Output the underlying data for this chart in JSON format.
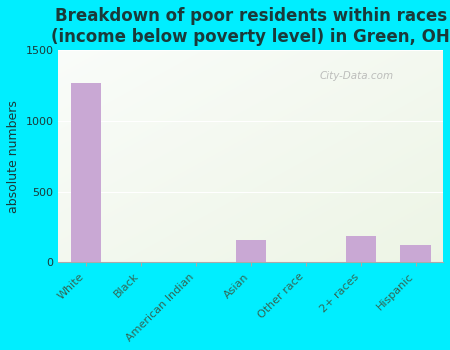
{
  "title": "Breakdown of poor residents within races\n(income below poverty level) in Green, OH",
  "categories": [
    "White",
    "Black",
    "American Indian",
    "Asian",
    "Other race",
    "2+ races",
    "Hispanic"
  ],
  "values": [
    1270,
    0,
    0,
    155,
    0,
    185,
    120
  ],
  "bar_color": "#c9a8d4",
  "ylabel": "absolute numbers",
  "ylim": [
    0,
    1500
  ],
  "yticks": [
    0,
    500,
    1000,
    1500
  ],
  "bg_outer": "#00eeff",
  "bg_plot_topleft": "#f0f8ec",
  "bg_plot_topright": "#d6ead8",
  "bg_plot_bottom": "#f8fdf6",
  "title_color": "#1a3a3a",
  "label_color": "#336655",
  "title_fontsize": 12,
  "ylabel_fontsize": 9,
  "tick_fontsize": 8,
  "watermark": "City-Data.com"
}
